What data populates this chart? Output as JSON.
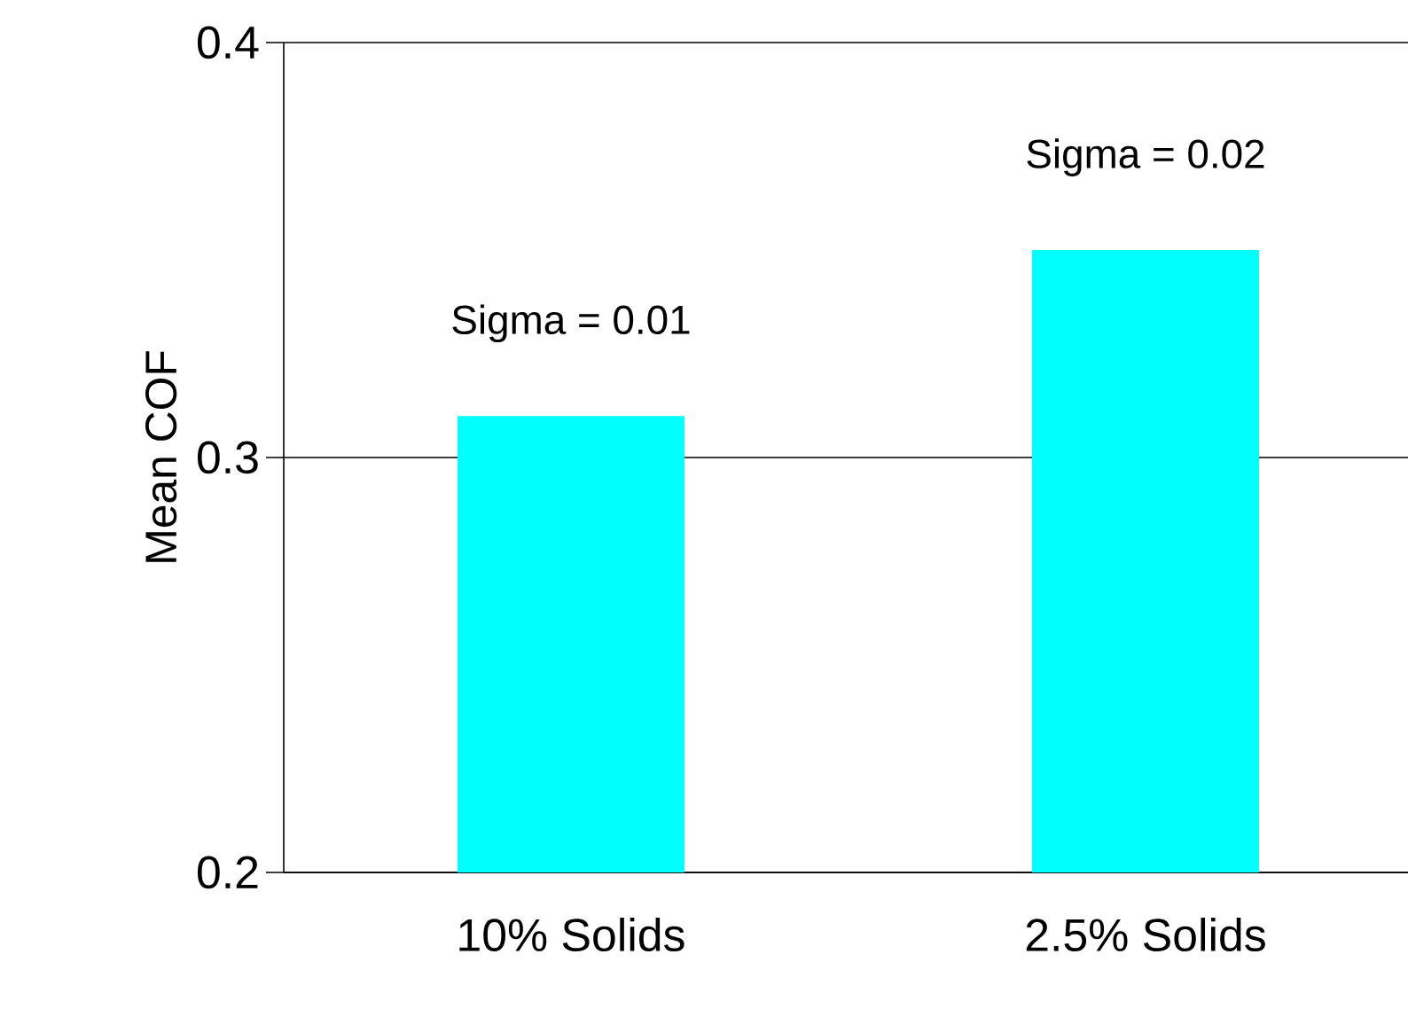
{
  "chart_data": {
    "type": "bar",
    "ylabel": "Mean COF",
    "categories": [
      "10% Solids",
      "2.5% Solids"
    ],
    "values": [
      0.31,
      0.35
    ],
    "color": "#00ffff",
    "ylim": [
      0.2,
      0.4
    ],
    "yticks": [
      0.2,
      0.3,
      0.4
    ],
    "grid": "y",
    "annotations": [
      "Sigma = 0.01",
      "Sigma = 0.02"
    ]
  }
}
